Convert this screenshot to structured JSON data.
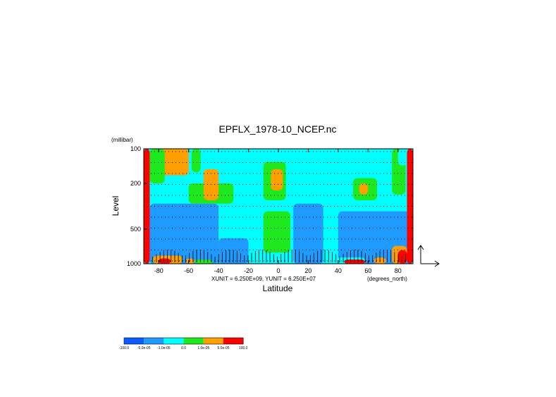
{
  "chart_data": {
    "type": "heatmap",
    "title": "EPFLX_1978-10_NCEP.nc",
    "xlabel": "Latitude",
    "ylabel": "Level",
    "y_unit": "(millibar)",
    "x_unit": "(degrees_north)",
    "x_ticks": [
      -80,
      -60,
      -40,
      -20,
      0,
      20,
      40,
      60,
      80
    ],
    "x_tick_labels": [
      "-80",
      "-60",
      "-40",
      "-20",
      "0",
      "20",
      "40",
      "60",
      "80"
    ],
    "y_ticks": [
      100,
      200,
      500,
      1000
    ],
    "y_tick_labels": [
      "100",
      "200",
      "500",
      "1000"
    ],
    "xlim": [
      -90,
      90
    ],
    "ylim": [
      1000,
      100
    ],
    "y_scale": "log",
    "vector_units": "XUNIT = 6.250E+09, YUNIT = 6.250E+07",
    "colorbar": {
      "labels": [
        "-100.0",
        "-5.0e-05",
        "-1.0e-05",
        "0.0",
        "1.0e-05",
        "5.0e-05",
        "100.0"
      ],
      "colors": [
        "#0a5cff",
        "#1f9bff",
        "#00ffff",
        "#1ee81e",
        "#ff9f00",
        "#ff0000"
      ]
    },
    "regions": [
      {
        "lat": [
          -90,
          -86
        ],
        "level": [
          100,
          1000
        ],
        "class": 5
      },
      {
        "lat": [
          -86,
          -82
        ],
        "level": [
          350,
          1000
        ],
        "class": 1
      },
      {
        "lat": [
          -82,
          -60
        ],
        "level": [
          100,
          170
        ],
        "class": 4
      },
      {
        "lat": [
          -58,
          -52
        ],
        "level": [
          100,
          160
        ],
        "class": 3
      },
      {
        "lat": [
          -86,
          -76
        ],
        "level": [
          100,
          200
        ],
        "class": 3
      },
      {
        "lat": [
          -86,
          -40
        ],
        "level": [
          300,
          1000
        ],
        "class": 1
      },
      {
        "lat": [
          -60,
          -30
        ],
        "level": [
          200,
          300
        ],
        "class": 3
      },
      {
        "lat": [
          -50,
          -40
        ],
        "level": [
          150,
          280
        ],
        "class": 4
      },
      {
        "lat": [
          -40,
          -20
        ],
        "level": [
          600,
          1000
        ],
        "class": 1
      },
      {
        "lat": [
          -10,
          5
        ],
        "level": [
          130,
          280
        ],
        "class": 3
      },
      {
        "lat": [
          -5,
          3
        ],
        "level": [
          150,
          230
        ],
        "class": 4
      },
      {
        "lat": [
          -10,
          8
        ],
        "level": [
          350,
          800
        ],
        "class": 3
      },
      {
        "lat": [
          10,
          30
        ],
        "level": [
          300,
          1000
        ],
        "class": 1
      },
      {
        "lat": [
          30,
          50
        ],
        "level": [
          140,
          350
        ],
        "class": 2
      },
      {
        "lat": [
          50,
          66
        ],
        "level": [
          180,
          280
        ],
        "class": 3
      },
      {
        "lat": [
          54,
          60
        ],
        "level": [
          200,
          250
        ],
        "class": 4
      },
      {
        "lat": [
          40,
          90
        ],
        "level": [
          350,
          1000
        ],
        "class": 1
      },
      {
        "lat": [
          76,
          85
        ],
        "level": [
          100,
          250
        ],
        "class": 3
      },
      {
        "lat": [
          80,
          86
        ],
        "level": [
          100,
          140
        ],
        "class": 2
      },
      {
        "lat": [
          -84,
          -64
        ],
        "level": [
          850,
          1000
        ],
        "class": 4
      },
      {
        "lat": [
          -80,
          -72
        ],
        "level": [
          900,
          1000
        ],
        "class": 5
      },
      {
        "lat": [
          -62,
          -56
        ],
        "level": [
          900,
          1000
        ],
        "class": 4
      },
      {
        "lat": [
          -56,
          -44
        ],
        "level": [
          920,
          1000
        ],
        "class": 3
      },
      {
        "lat": [
          38,
          58
        ],
        "level": [
          880,
          1000
        ],
        "class": 2
      },
      {
        "lat": [
          44,
          58
        ],
        "level": [
          920,
          1000
        ],
        "class": 5
      },
      {
        "lat": [
          64,
          72
        ],
        "level": [
          880,
          1000
        ],
        "class": 4
      },
      {
        "lat": [
          76,
          86
        ],
        "level": [
          700,
          1000
        ],
        "class": 4
      },
      {
        "lat": [
          80,
          86
        ],
        "level": [
          760,
          1000
        ],
        "class": 5
      },
      {
        "lat": [
          86,
          90
        ],
        "level": [
          100,
          1000
        ],
        "class": 5
      }
    ]
  }
}
